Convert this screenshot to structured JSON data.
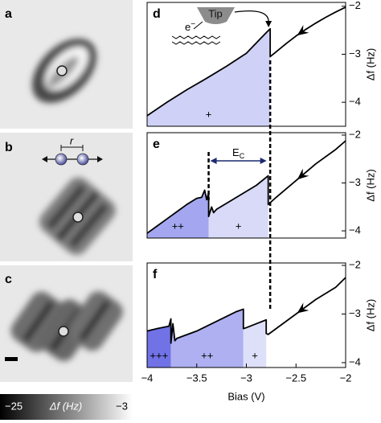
{
  "image_panels": [
    {
      "label": "a"
    },
    {
      "label": "b",
      "annotation": "r"
    },
    {
      "label": "c"
    }
  ],
  "colorbar": {
    "label": "Δf (Hz)",
    "ticks": [
      {
        "value": -25,
        "label": "−25"
      },
      {
        "value": -3,
        "label": "−3"
      }
    ]
  },
  "chart_data": [
    {
      "type": "line",
      "label": "d",
      "y_label": "Δf (Hz)",
      "x": [
        -4,
        -3.8,
        -3.6,
        -3.4,
        -3.2,
        -3.0,
        -2.8,
        -2.76,
        -2.76,
        -2.7,
        -2.6,
        -2.5,
        -2.4,
        -2.3,
        -2.2,
        -2.1,
        -2.0
      ],
      "series": [
        {
          "color": "#000000",
          "values": [
            -4.28,
            -4.0,
            -3.74,
            -3.5,
            -3.25,
            -2.98,
            -2.55,
            -2.47,
            -3.05,
            -2.95,
            -2.78,
            -2.62,
            -2.48,
            -2.35,
            -2.23,
            -2.12,
            -2.02
          ]
        }
      ],
      "xlim": [
        -4,
        -2
      ],
      "ylim": [
        -4.5,
        -1.92
      ],
      "yticks": [
        {
          "value": -4,
          "label": "−4"
        },
        {
          "value": -3,
          "label": "−3"
        },
        {
          "value": -2,
          "label": "−2"
        }
      ],
      "regions": [
        {
          "x": [
            -4,
            -2.76
          ],
          "label": "+",
          "color": "#cfd1f6"
        }
      ],
      "annotations": {
        "tip": "Tip",
        "electron": {
          "main": "e",
          "sup": "−"
        }
      }
    },
    {
      "type": "line",
      "label": "e",
      "y_label": "Δf (Hz)",
      "x": [
        -4,
        -3.9,
        -3.8,
        -3.7,
        -3.6,
        -3.5,
        -3.45,
        -3.42,
        -3.4,
        -3.38,
        -3.38,
        -3.35,
        -3.33,
        -3.3,
        -3.1,
        -2.9,
        -2.78,
        -2.78,
        -2.7,
        -2.5,
        -2.3,
        -2.1,
        -2.0
      ],
      "series": [
        {
          "color": "#000000",
          "values": [
            -4.05,
            -3.9,
            -3.75,
            -3.6,
            -3.45,
            -3.32,
            -3.3,
            -3.15,
            -3.35,
            -3.2,
            -3.7,
            -3.5,
            -3.62,
            -3.55,
            -3.3,
            -3.05,
            -2.85,
            -3.45,
            -3.3,
            -2.95,
            -2.6,
            -2.3,
            -2.12
          ]
        }
      ],
      "xlim": [
        -4,
        -2
      ],
      "ylim": [
        -4.15,
        -1.95
      ],
      "yticks": [
        {
          "value": -4,
          "label": "−4"
        },
        {
          "value": -3,
          "label": "−3"
        },
        {
          "value": -2,
          "label": "−2"
        }
      ],
      "regions": [
        {
          "x": [
            -4,
            -3.38
          ],
          "label": "++",
          "color": "#a4a7ef"
        },
        {
          "x": [
            -3.38,
            -2.78
          ],
          "label": "+",
          "color": "#d9daf8"
        }
      ],
      "annotations": {
        "charging_energy": {
          "main": "E",
          "sub": "C"
        }
      }
    },
    {
      "type": "line",
      "label": "f",
      "y_label": "Δf (Hz)",
      "x_label": "Bias (V)",
      "x": [
        -4,
        -3.9,
        -3.78,
        -3.76,
        -3.76,
        -3.74,
        -3.72,
        -3.7,
        -3.5,
        -3.3,
        -3.1,
        -3.03,
        -3.03,
        -3.0,
        -2.9,
        -2.8,
        -2.8,
        -2.78,
        -2.7,
        -2.5,
        -2.3,
        -2.1,
        -2.0
      ],
      "series": [
        {
          "color": "#000000",
          "values": [
            -3.35,
            -3.3,
            -3.25,
            -3.1,
            -3.6,
            -3.2,
            -3.55,
            -3.5,
            -3.35,
            -3.15,
            -2.95,
            -2.9,
            -3.3,
            -3.28,
            -3.2,
            -3.12,
            -3.4,
            -3.42,
            -3.3,
            -3.0,
            -2.7,
            -2.45,
            -2.25
          ]
        }
      ],
      "xlim": [
        -4,
        -2
      ],
      "ylim": [
        -4.1,
        -1.95
      ],
      "xticks": [
        {
          "value": -4,
          "label": "−4"
        },
        {
          "value": -3.5,
          "label": "−3.5"
        },
        {
          "value": -3,
          "label": "−3"
        },
        {
          "value": -2.5,
          "label": "−2.5"
        },
        {
          "value": -2,
          "label": "−2"
        }
      ],
      "yticks": [
        {
          "value": -4,
          "label": "−4"
        },
        {
          "value": -3,
          "label": "−3"
        },
        {
          "value": -2,
          "label": "−2"
        }
      ],
      "regions": [
        {
          "x": [
            -4,
            -3.76
          ],
          "label": "+++",
          "color": "#7072e6"
        },
        {
          "x": [
            -3.76,
            -3.03
          ],
          "label": "++",
          "color": "#aeb0f1"
        },
        {
          "x": [
            -3.03,
            -2.8
          ],
          "label": "+",
          "color": "#dedff9"
        }
      ]
    }
  ]
}
